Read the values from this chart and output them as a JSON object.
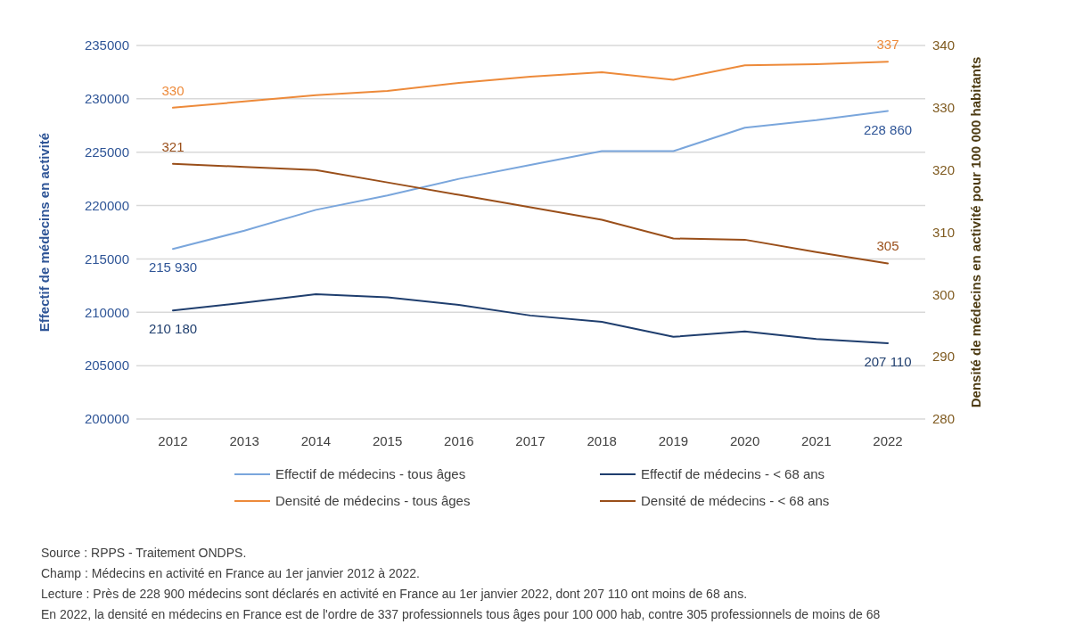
{
  "chart_data": {
    "type": "line",
    "categories": [
      "2012",
      "2013",
      "2014",
      "2015",
      "2016",
      "2017",
      "2018",
      "2019",
      "2020",
      "2021",
      "2022"
    ],
    "ylabel": "Effectif de médecins en activité",
    "y2label": "Densité de médecins en activité pour 100 000 habitants",
    "ylim": [
      200000,
      235000
    ],
    "yticks": [
      200000,
      205000,
      210000,
      215000,
      220000,
      225000,
      230000,
      235000
    ],
    "y2lim": [
      280,
      340
    ],
    "y2ticks": [
      280,
      290,
      300,
      310,
      320,
      330,
      340
    ],
    "grid": "y",
    "legend": "bottom",
    "marker": "none",
    "line_style": "solid",
    "series": [
      {
        "name": "Effectif de médecins - tous âges",
        "color": "#7aa6dc",
        "values": [
          215930,
          217650,
          219600,
          220950,
          222500,
          223800,
          225100,
          225100,
          227300,
          228000,
          228860
        ],
        "value_labels": [
          "215 930",
          null,
          null,
          null,
          null,
          null,
          null,
          null,
          null,
          null,
          "228 860"
        ]
      },
      {
        "name": "Effectif de médecins - < 68 ans",
        "color": "#1f3e6e",
        "values": [
          210180,
          210900,
          211700,
          211400,
          210700,
          209700,
          209100,
          207700,
          208200,
          207500,
          207110
        ],
        "value_labels": [
          "210 180",
          null,
          null,
          null,
          null,
          null,
          null,
          null,
          null,
          null,
          "207 110"
        ]
      },
      {
        "name": "Densité de médecins - tous âges",
        "color": "#ed8a3a",
        "axis": "y2",
        "values": [
          330,
          331,
          332,
          332.7,
          334,
          335,
          335.7,
          334.5,
          336.8,
          337,
          337.4
        ],
        "value_labels": [
          "330",
          null,
          null,
          null,
          null,
          null,
          null,
          null,
          null,
          null,
          "337"
        ]
      },
      {
        "name": "Densité de médecins - < 68 ans",
        "color": "#9a4f1a",
        "axis": "y2",
        "values": [
          321,
          320.5,
          320,
          318,
          316,
          314,
          312,
          309,
          308.8,
          306.8,
          305
        ],
        "value_labels": [
          "321",
          null,
          null,
          null,
          null,
          null,
          null,
          null,
          null,
          null,
          "305"
        ]
      }
    ],
    "annotations": [
      "Source : RPPS - Traitement ONDPS.",
      "Champ : Médecins en activité en France au 1er janvier 2012 à 2022.",
      "Lecture : Près de 228 900 médecins sont déclarés en activité en France au 1er janvier 2022, dont 207 110 ont moins de 68 ans.",
      "En 2022, la densité en médecins en France est de l'ordre de 337 professionnels tous âges pour 100 000 hab, contre 305 professionnels de moins de 68"
    ]
  }
}
